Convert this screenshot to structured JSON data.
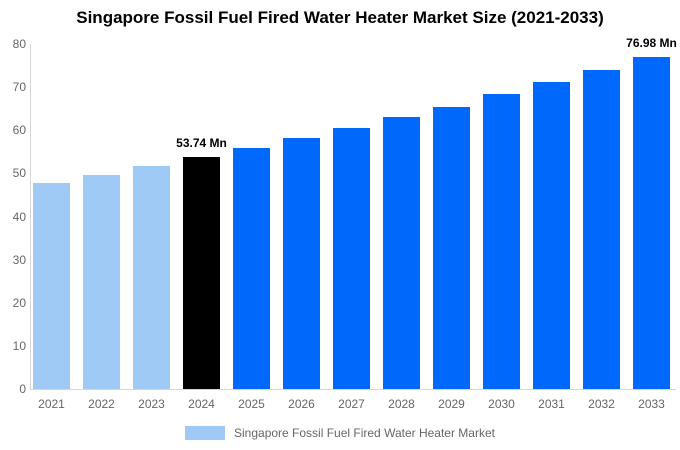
{
  "title": "Singapore Fossil Fuel Fired Water Heater Market Size (2021-2033)",
  "legend": {
    "label": "Singapore Fossil Fuel Fired Water Heater Market",
    "swatch_color": "#9ECAF5"
  },
  "chart_data": {
    "type": "bar",
    "title": "Singapore Fossil Fuel Fired Water Heater Market Size (2021-2033)",
    "unit": "Mn",
    "categories": [
      "2021",
      "2022",
      "2023",
      "2024",
      "2025",
      "2026",
      "2027",
      "2028",
      "2029",
      "2030",
      "2031",
      "2032",
      "2033"
    ],
    "values": [
      47.7,
      49.6,
      51.6,
      53.74,
      55.9,
      58.1,
      60.5,
      63.1,
      65.5,
      68.3,
      71.2,
      74.0,
      76.98
    ],
    "series_name": "Singapore Fossil Fuel Fired Water Heater Market",
    "ylim": [
      0,
      80
    ],
    "yticks": [
      0,
      10,
      20,
      30,
      40,
      50,
      60,
      70,
      80
    ],
    "grid": false,
    "legend_position": "bottom",
    "annotations": [
      {
        "category": "2024",
        "text": "53.74 Mn"
      },
      {
        "category": "2033",
        "text": "76.98 Mn"
      }
    ],
    "bar_color_roles": [
      "historical",
      "historical",
      "historical",
      "base_year",
      "forecast",
      "forecast",
      "forecast",
      "forecast",
      "forecast",
      "forecast",
      "forecast",
      "forecast",
      "forecast"
    ],
    "colors": {
      "historical": "#9ECAF5",
      "base_year": "#000000",
      "forecast": "#0068FA"
    },
    "axis_color": "#D6D6D6",
    "tick_label_color": "#666666"
  }
}
